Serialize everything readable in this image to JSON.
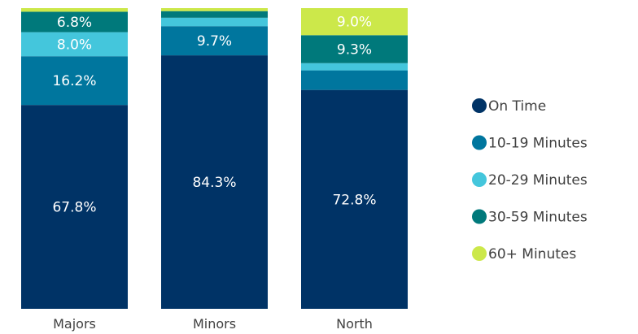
{
  "chart_data": {
    "type": "bar",
    "stacked": true,
    "orientation": "vertical",
    "categories": [
      "Majors",
      "Minors",
      "North"
    ],
    "series": [
      {
        "name": "On Time",
        "color": "#003366",
        "values": [
          67.8,
          84.3,
          72.8
        ]
      },
      {
        "name": "10-19 Minutes",
        "color": "#00769E",
        "values": [
          16.2,
          9.7,
          6.5
        ]
      },
      {
        "name": "20-29 Minutes",
        "color": "#44C6DC",
        "values": [
          8.0,
          2.8,
          2.4
        ]
      },
      {
        "name": "30-59 Minutes",
        "color": "#00797B",
        "values": [
          6.8,
          2.2,
          9.3
        ]
      },
      {
        "name": "60+ Minutes",
        "color": "#CCE84A",
        "values": [
          1.2,
          1.0,
          9.0
        ]
      }
    ],
    "data_labels": {
      "Majors": {
        "On Time": "67.8%",
        "10-19 Minutes": "16.2%",
        "20-29 Minutes": "8.0%",
        "30-59 Minutes": "6.8%"
      },
      "Minors": {
        "On Time": "84.3%",
        "10-19 Minutes": "9.7%"
      },
      "North": {
        "On Time": "72.8%",
        "30-59 Minutes": "9.3%",
        "60+ Minutes": "9.0%"
      }
    },
    "ylim": [
      0,
      100
    ],
    "grid": false,
    "legend_position": "right"
  }
}
